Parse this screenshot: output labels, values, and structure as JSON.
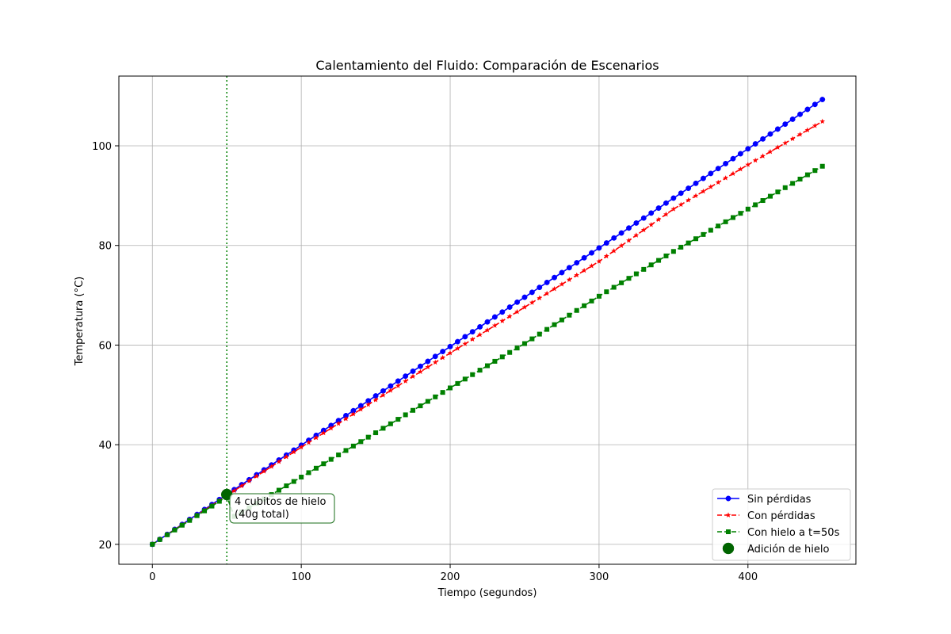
{
  "chart_data": {
    "type": "line",
    "title": "Calentamiento del Fluido: Comparación de Escenarios",
    "xlabel": "Tiempo (segundos)",
    "ylabel": "Temperatura (°C)",
    "xlim": [
      -22.5,
      472.5
    ],
    "ylim": [
      16,
      114
    ],
    "xticks": [
      0,
      100,
      200,
      300,
      400
    ],
    "yticks": [
      20,
      40,
      60,
      80,
      100
    ],
    "grid": true,
    "legend_position": "lower-right",
    "series": [
      {
        "name": "Sin pérdidas",
        "color": "#0000ff",
        "line_style": "solid",
        "marker": "circle",
        "x": [
          0,
          50,
          100,
          150,
          200,
          250,
          300,
          350,
          400,
          450
        ],
        "y": [
          20,
          30,
          39.9,
          49.8,
          59.7,
          69.6,
          79.5,
          89.5,
          99.4,
          109.3
        ]
      },
      {
        "name": "Con pérdidas",
        "color": "#ff0000",
        "line_style": "dashed",
        "marker": "star",
        "x": [
          0,
          50,
          100,
          150,
          200,
          250,
          300,
          350,
          400,
          450
        ],
        "y": [
          20,
          29.8,
          39.5,
          49.0,
          58.4,
          67.6,
          76.8,
          87.3,
          96.2,
          104.9
        ]
      },
      {
        "name": "Con hielo a t=50s",
        "color": "#008000",
        "line_style": "dashed",
        "marker": "square",
        "x": [
          0,
          50,
          55,
          100,
          150,
          200,
          250,
          300,
          350,
          400,
          450
        ],
        "y": [
          20,
          29.6,
          25.6,
          33.5,
          42.4,
          51.4,
          60.3,
          69.8,
          78.8,
          87.3,
          95.9
        ]
      },
      {
        "name": "Adición de hielo",
        "color": "#006400",
        "type": "scatter",
        "marker": "circle",
        "x": [
          50
        ],
        "y": [
          30
        ]
      }
    ],
    "vertical_line": {
      "x": 50,
      "color": "#008000",
      "line_style": "dotted"
    },
    "annotation": {
      "lines": [
        "4 cubitos de hielo",
        "(40g total)"
      ],
      "x": 50,
      "y": 30
    }
  }
}
